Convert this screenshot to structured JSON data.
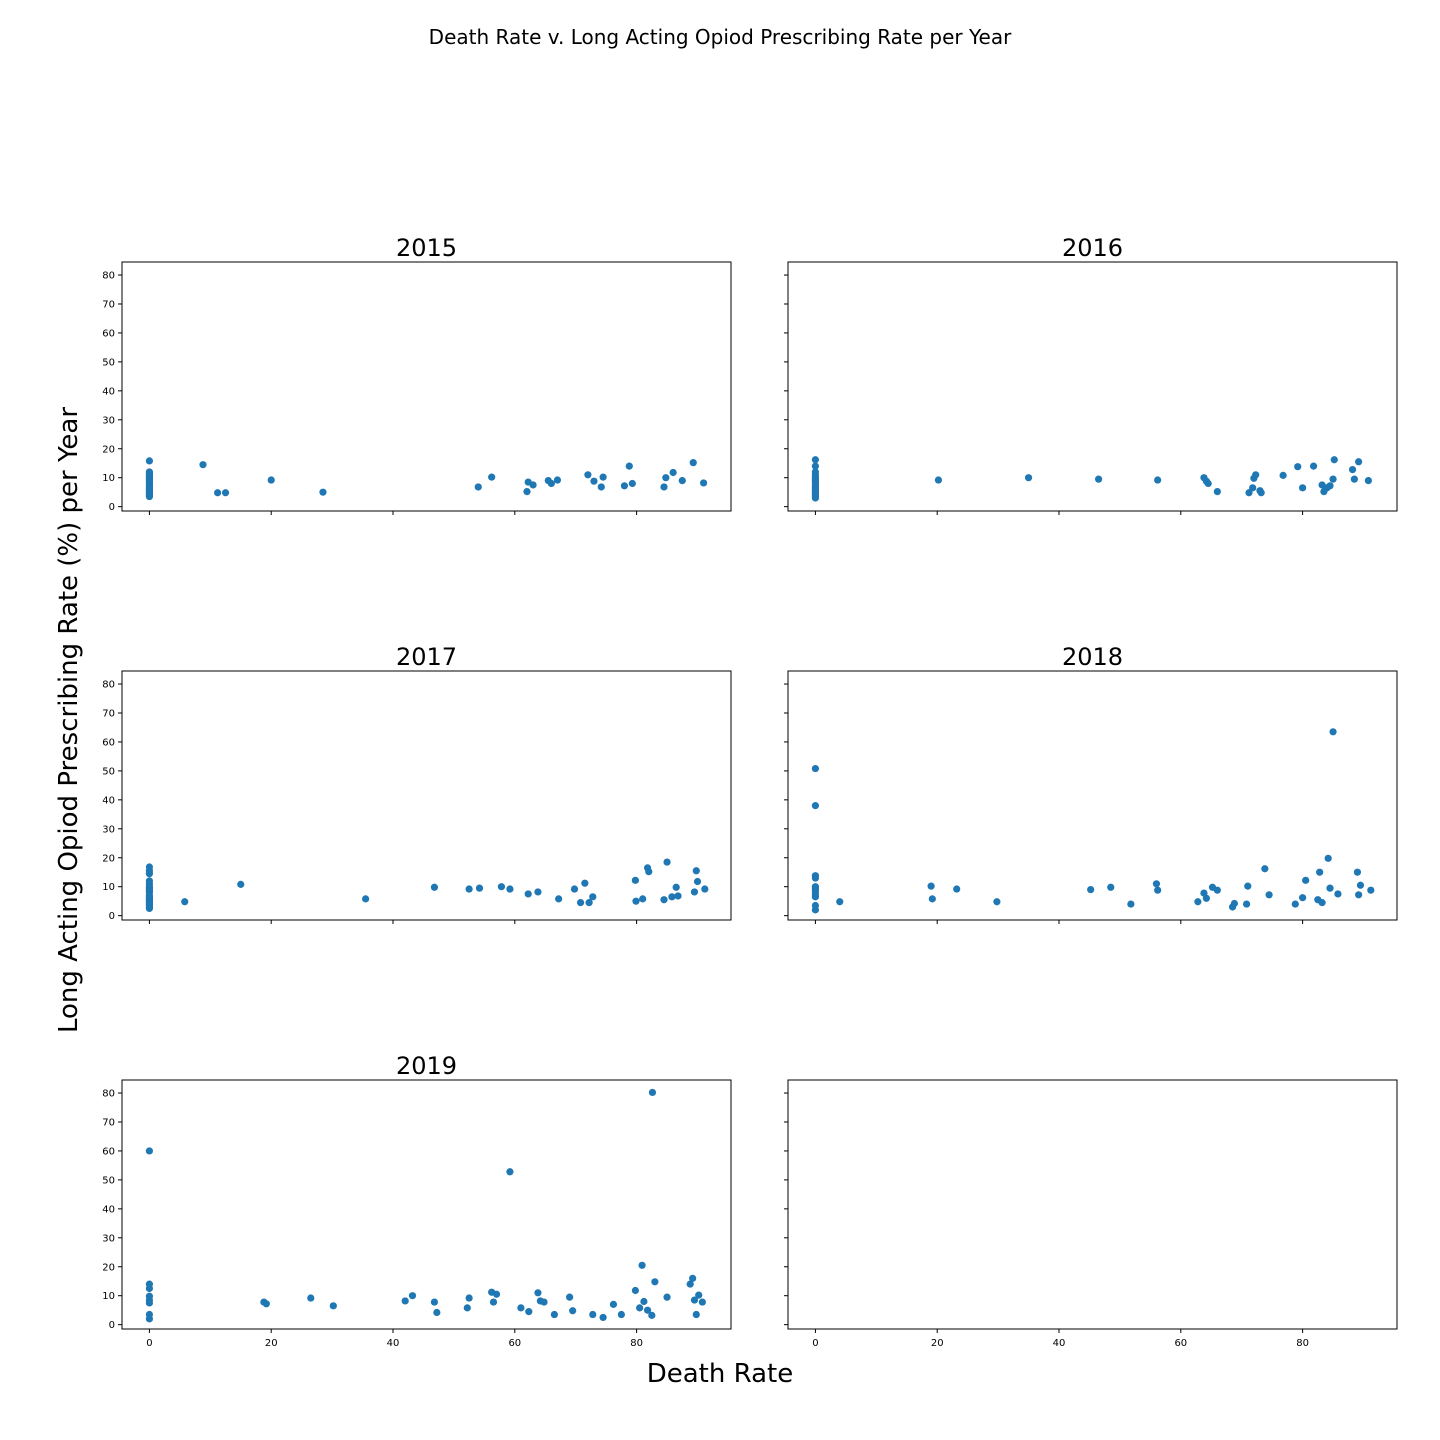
{
  "figure": {
    "suptitle": "Death Rate v. Long Acting Opiod Prescribing Rate per Year",
    "xlabel": "Death Rate",
    "ylabel": "Long Acting Opiod Prescribing Rate (%) per Year",
    "point_color": "#1f77b4"
  },
  "chart_data": [
    {
      "type": "scatter",
      "title": "2015",
      "xlim": [
        -4.5,
        95.5
      ],
      "ylim": [
        -1.5,
        84.5
      ],
      "xticks": [],
      "yticks": [
        "0",
        "10",
        "20",
        "30",
        "40",
        "50",
        "60",
        "70",
        "80"
      ],
      "points": [
        [
          0,
          3.5
        ],
        [
          0,
          4.0
        ],
        [
          0,
          4.5
        ],
        [
          0,
          5.0
        ],
        [
          0,
          5.5
        ],
        [
          0,
          6.0
        ],
        [
          0,
          6.5
        ],
        [
          0,
          7.0
        ],
        [
          0,
          7.5
        ],
        [
          0,
          8.0
        ],
        [
          0,
          8.5
        ],
        [
          0,
          9.0
        ],
        [
          0,
          9.5
        ],
        [
          0,
          10.0
        ],
        [
          0,
          10.5
        ],
        [
          0,
          11.0
        ],
        [
          0,
          11.5
        ],
        [
          0,
          12.0
        ],
        [
          0,
          15.8
        ],
        [
          8.8,
          14.5
        ],
        [
          11.2,
          4.8
        ],
        [
          12.5,
          4.8
        ],
        [
          20.0,
          9.2
        ],
        [
          28.5,
          5.0
        ],
        [
          54.0,
          6.8
        ],
        [
          56.2,
          10.2
        ],
        [
          62.0,
          5.2
        ],
        [
          62.2,
          8.5
        ],
        [
          63.0,
          7.5
        ],
        [
          65.5,
          9.0
        ],
        [
          66.0,
          8.0
        ],
        [
          67.0,
          9.2
        ],
        [
          72.0,
          11.0
        ],
        [
          73.0,
          8.8
        ],
        [
          74.2,
          6.8
        ],
        [
          74.5,
          10.2
        ],
        [
          78.0,
          7.2
        ],
        [
          78.8,
          14.0
        ],
        [
          79.3,
          8.0
        ],
        [
          84.5,
          6.8
        ],
        [
          84.8,
          10.0
        ],
        [
          86.0,
          11.8
        ],
        [
          87.5,
          9.0
        ],
        [
          89.3,
          15.2
        ],
        [
          91.0,
          8.2
        ]
      ]
    },
    {
      "type": "scatter",
      "title": "2016",
      "xlim": [
        -4.5,
        95.5
      ],
      "ylim": [
        -1.5,
        84.5
      ],
      "xticks": [],
      "yticks": [],
      "points": [
        [
          0,
          3.0
        ],
        [
          0,
          3.5
        ],
        [
          0,
          4.0
        ],
        [
          0,
          4.5
        ],
        [
          0,
          5.0
        ],
        [
          0,
          5.5
        ],
        [
          0,
          6.0
        ],
        [
          0,
          6.5
        ],
        [
          0,
          7.0
        ],
        [
          0,
          7.5
        ],
        [
          0,
          8.0
        ],
        [
          0,
          8.5
        ],
        [
          0,
          9.0
        ],
        [
          0,
          9.5
        ],
        [
          0,
          10.0
        ],
        [
          0,
          11.0
        ],
        [
          0,
          12.0
        ],
        [
          0,
          14.0
        ],
        [
          0,
          16.2
        ],
        [
          20.2,
          9.2
        ],
        [
          35.0,
          10.0
        ],
        [
          46.5,
          9.5
        ],
        [
          56.2,
          9.2
        ],
        [
          63.8,
          10.0
        ],
        [
          64.2,
          8.8
        ],
        [
          64.5,
          8.0
        ],
        [
          66.0,
          5.2
        ],
        [
          71.2,
          4.8
        ],
        [
          71.8,
          6.5
        ],
        [
          72.0,
          9.8
        ],
        [
          72.3,
          11.0
        ],
        [
          73.0,
          5.5
        ],
        [
          73.2,
          4.8
        ],
        [
          76.8,
          10.8
        ],
        [
          79.2,
          13.8
        ],
        [
          80.0,
          6.5
        ],
        [
          81.8,
          14.0
        ],
        [
          83.2,
          7.5
        ],
        [
          83.5,
          5.2
        ],
        [
          84.0,
          6.5
        ],
        [
          84.5,
          7.2
        ],
        [
          85.0,
          9.5
        ],
        [
          85.2,
          16.2
        ],
        [
          88.2,
          12.8
        ],
        [
          88.5,
          9.5
        ],
        [
          89.2,
          15.5
        ],
        [
          90.8,
          9.0
        ]
      ]
    },
    {
      "type": "scatter",
      "title": "2017",
      "xlim": [
        -4.5,
        95.5
      ],
      "ylim": [
        -1.5,
        84.5
      ],
      "xticks": [],
      "yticks": [
        "0",
        "10",
        "20",
        "30",
        "40",
        "50",
        "60",
        "70",
        "80"
      ],
      "points": [
        [
          0,
          2.5
        ],
        [
          0,
          3.0
        ],
        [
          0,
          3.5
        ],
        [
          0,
          4.0
        ],
        [
          0,
          4.5
        ],
        [
          0,
          5.0
        ],
        [
          0,
          5.5
        ],
        [
          0,
          6.0
        ],
        [
          0,
          6.5
        ],
        [
          0,
          7.0
        ],
        [
          0,
          8.0
        ],
        [
          0,
          8.5
        ],
        [
          0,
          9.0
        ],
        [
          0,
          9.5
        ],
        [
          0,
          10.0
        ],
        [
          0,
          11.0
        ],
        [
          0,
          12.0
        ],
        [
          0,
          14.5
        ],
        [
          0,
          15.5
        ],
        [
          0,
          16.8
        ],
        [
          5.8,
          4.8
        ],
        [
          15.0,
          10.8
        ],
        [
          35.5,
          5.8
        ],
        [
          46.8,
          9.8
        ],
        [
          52.5,
          9.2
        ],
        [
          54.2,
          9.5
        ],
        [
          57.8,
          10.0
        ],
        [
          59.2,
          9.2
        ],
        [
          62.2,
          7.5
        ],
        [
          63.8,
          8.2
        ],
        [
          67.2,
          5.8
        ],
        [
          69.8,
          9.2
        ],
        [
          70.8,
          4.5
        ],
        [
          71.5,
          11.2
        ],
        [
          72.2,
          4.5
        ],
        [
          72.8,
          6.5
        ],
        [
          79.8,
          12.2
        ],
        [
          79.9,
          5.0
        ],
        [
          81.0,
          5.8
        ],
        [
          81.8,
          16.5
        ],
        [
          82.0,
          15.2
        ],
        [
          84.5,
          5.5
        ],
        [
          85.0,
          18.5
        ],
        [
          85.8,
          6.5
        ],
        [
          86.5,
          9.8
        ],
        [
          86.8,
          6.8
        ],
        [
          89.5,
          8.2
        ],
        [
          89.8,
          15.5
        ],
        [
          90.0,
          11.8
        ],
        [
          91.2,
          9.2
        ]
      ]
    },
    {
      "type": "scatter",
      "title": "2018",
      "xlim": [
        -4.5,
        95.5
      ],
      "ylim": [
        -1.5,
        84.5
      ],
      "xticks": [],
      "yticks": [],
      "points": [
        [
          0,
          2.0
        ],
        [
          0,
          3.5
        ],
        [
          0,
          6.5
        ],
        [
          0,
          7.0
        ],
        [
          0,
          8.0
        ],
        [
          0,
          8.8
        ],
        [
          0,
          9.5
        ],
        [
          0,
          10.0
        ],
        [
          0,
          13.0
        ],
        [
          0,
          13.8
        ],
        [
          0,
          38.0
        ],
        [
          0,
          50.8
        ],
        [
          4.0,
          4.8
        ],
        [
          19.0,
          10.2
        ],
        [
          19.2,
          5.8
        ],
        [
          23.2,
          9.2
        ],
        [
          29.8,
          4.8
        ],
        [
          45.2,
          9.0
        ],
        [
          48.5,
          9.8
        ],
        [
          51.8,
          4.0
        ],
        [
          56.0,
          11.0
        ],
        [
          56.2,
          8.8
        ],
        [
          62.8,
          4.8
        ],
        [
          63.8,
          7.8
        ],
        [
          64.2,
          6.0
        ],
        [
          65.2,
          9.8
        ],
        [
          66.0,
          8.8
        ],
        [
          68.5,
          3.0
        ],
        [
          68.8,
          4.2
        ],
        [
          70.8,
          4.0
        ],
        [
          71.0,
          10.2
        ],
        [
          73.8,
          16.2
        ],
        [
          74.5,
          7.2
        ],
        [
          78.8,
          4.0
        ],
        [
          80.0,
          6.2
        ],
        [
          80.5,
          12.2
        ],
        [
          82.5,
          5.5
        ],
        [
          82.8,
          15.0
        ],
        [
          83.2,
          4.5
        ],
        [
          84.2,
          19.8
        ],
        [
          84.5,
          9.5
        ],
        [
          85.0,
          63.5
        ],
        [
          85.8,
          7.5
        ],
        [
          89.0,
          15.0
        ],
        [
          89.2,
          7.2
        ],
        [
          89.5,
          10.5
        ],
        [
          91.2,
          8.8
        ]
      ]
    },
    {
      "type": "scatter",
      "title": "2019",
      "xlim": [
        -4.5,
        95.5
      ],
      "ylim": [
        -1.5,
        84.5
      ],
      "xticks": [
        "0",
        "20",
        "40",
        "60",
        "80"
      ],
      "yticks": [
        "0",
        "10",
        "20",
        "30",
        "40",
        "50",
        "60",
        "70",
        "80"
      ],
      "points": [
        [
          0,
          2.0
        ],
        [
          0,
          3.5
        ],
        [
          0,
          7.5
        ],
        [
          0,
          8.5
        ],
        [
          0,
          9.8
        ],
        [
          0,
          12.5
        ],
        [
          0,
          14.0
        ],
        [
          0,
          60.0
        ],
        [
          18.8,
          7.8
        ],
        [
          19.2,
          7.2
        ],
        [
          26.5,
          9.2
        ],
        [
          30.2,
          6.5
        ],
        [
          42.0,
          8.2
        ],
        [
          43.2,
          10.0
        ],
        [
          46.8,
          7.8
        ],
        [
          47.2,
          4.2
        ],
        [
          52.2,
          5.8
        ],
        [
          52.5,
          9.2
        ],
        [
          56.2,
          11.2
        ],
        [
          56.5,
          7.8
        ],
        [
          57.0,
          10.5
        ],
        [
          59.2,
          52.8
        ],
        [
          61.0,
          5.8
        ],
        [
          62.3,
          4.5
        ],
        [
          63.8,
          11.0
        ],
        [
          64.2,
          8.2
        ],
        [
          64.8,
          7.8
        ],
        [
          66.5,
          3.5
        ],
        [
          69.0,
          9.5
        ],
        [
          69.5,
          4.8
        ],
        [
          72.8,
          3.5
        ],
        [
          74.5,
          2.5
        ],
        [
          76.2,
          7.0
        ],
        [
          77.5,
          3.5
        ],
        [
          79.8,
          11.8
        ],
        [
          80.5,
          5.8
        ],
        [
          80.9,
          20.5
        ],
        [
          81.2,
          8.0
        ],
        [
          81.8,
          5.0
        ],
        [
          82.5,
          3.2
        ],
        [
          82.6,
          80.2
        ],
        [
          83.0,
          14.8
        ],
        [
          85.0,
          9.5
        ],
        [
          88.8,
          14.0
        ],
        [
          89.2,
          16.0
        ],
        [
          89.5,
          8.5
        ],
        [
          89.8,
          3.5
        ],
        [
          90.2,
          10.2
        ],
        [
          90.8,
          7.8
        ]
      ]
    },
    {
      "type": "scatter",
      "title": "",
      "xlim": [
        -4.5,
        95.5
      ],
      "ylim": [
        -1.5,
        84.5
      ],
      "xticks": [
        "0",
        "20",
        "40",
        "60",
        "80"
      ],
      "yticks": [],
      "points": []
    }
  ]
}
